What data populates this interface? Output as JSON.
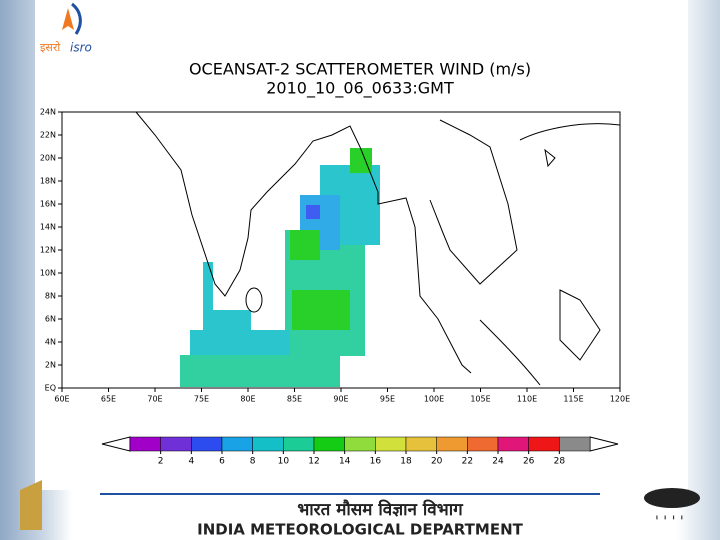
{
  "logo": {
    "hindi": "इसरो",
    "latin": "isro"
  },
  "chart_data": {
    "type": "map",
    "title": "OCEANSAT-2 SCATTEROMETER WIND (m/s)",
    "subtitle": "2010_10_06_0633:GMT",
    "xlim": [
      60,
      120
    ],
    "xticks": [
      {
        "value": 60,
        "label": "60E"
      },
      {
        "value": 65,
        "label": "65E"
      },
      {
        "value": 70,
        "label": "70E"
      },
      {
        "value": 75,
        "label": "75E"
      },
      {
        "value": 80,
        "label": "80E"
      },
      {
        "value": 85,
        "label": "85E"
      },
      {
        "value": 90,
        "label": "90E"
      },
      {
        "value": 95,
        "label": "95E"
      },
      {
        "value": 100,
        "label": "100E"
      },
      {
        "value": 105,
        "label": "105E"
      },
      {
        "value": 110,
        "label": "110E"
      },
      {
        "value": 115,
        "label": "115E"
      },
      {
        "value": 120,
        "label": "120E"
      }
    ],
    "ylim": [
      0,
      24
    ],
    "yticks": [
      {
        "value": 0,
        "label": "EQ"
      },
      {
        "value": 2,
        "label": "2N"
      },
      {
        "value": 4,
        "label": "4N"
      },
      {
        "value": 6,
        "label": "6N"
      },
      {
        "value": 8,
        "label": "8N"
      },
      {
        "value": 10,
        "label": "10N"
      },
      {
        "value": 12,
        "label": "12N"
      },
      {
        "value": 14,
        "label": "14N"
      },
      {
        "value": 16,
        "label": "16N"
      },
      {
        "value": 18,
        "label": "18N"
      },
      {
        "value": 20,
        "label": "20N"
      },
      {
        "value": 22,
        "label": "22N"
      },
      {
        "value": 24,
        "label": "24N"
      }
    ],
    "colorbar": {
      "levels": [
        2,
        4,
        6,
        8,
        10,
        12,
        14,
        16,
        18,
        20,
        22,
        24,
        26,
        28
      ],
      "colors": [
        "#a000c8",
        "#7030d8",
        "#2c4cf0",
        "#1aa2e6",
        "#14bfc8",
        "#1ccc96",
        "#14cc14",
        "#90dc3c",
        "#d2e03c",
        "#e6c23c",
        "#ee9a30",
        "#ee6a30",
        "#e01678",
        "#ee1616",
        "#8a8a8a"
      ]
    }
  },
  "footer": {
    "hindi": "भारत मौसम विज्ञान विभाग",
    "english": "INDIA METEOROLOGICAL DEPARTMENT"
  }
}
